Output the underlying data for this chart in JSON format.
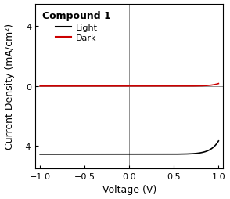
{
  "title": "Compound 1",
  "xlabel": "Voltage (V)",
  "ylabel": "Current Density (mA/cm²)",
  "xlim": [
    -1.05,
    1.05
  ],
  "ylim": [
    -5.5,
    5.5
  ],
  "yticks": [
    -4,
    0,
    4
  ],
  "xticks": [
    -1.0,
    -0.5,
    0.0,
    0.5,
    1.0
  ],
  "light_color": "#000000",
  "dark_color": "#cc0000",
  "background_color": "#ffffff",
  "legend_labels": [
    "Light",
    "Dark"
  ],
  "figsize": [
    2.94,
    2.55
  ],
  "dpi": 100
}
